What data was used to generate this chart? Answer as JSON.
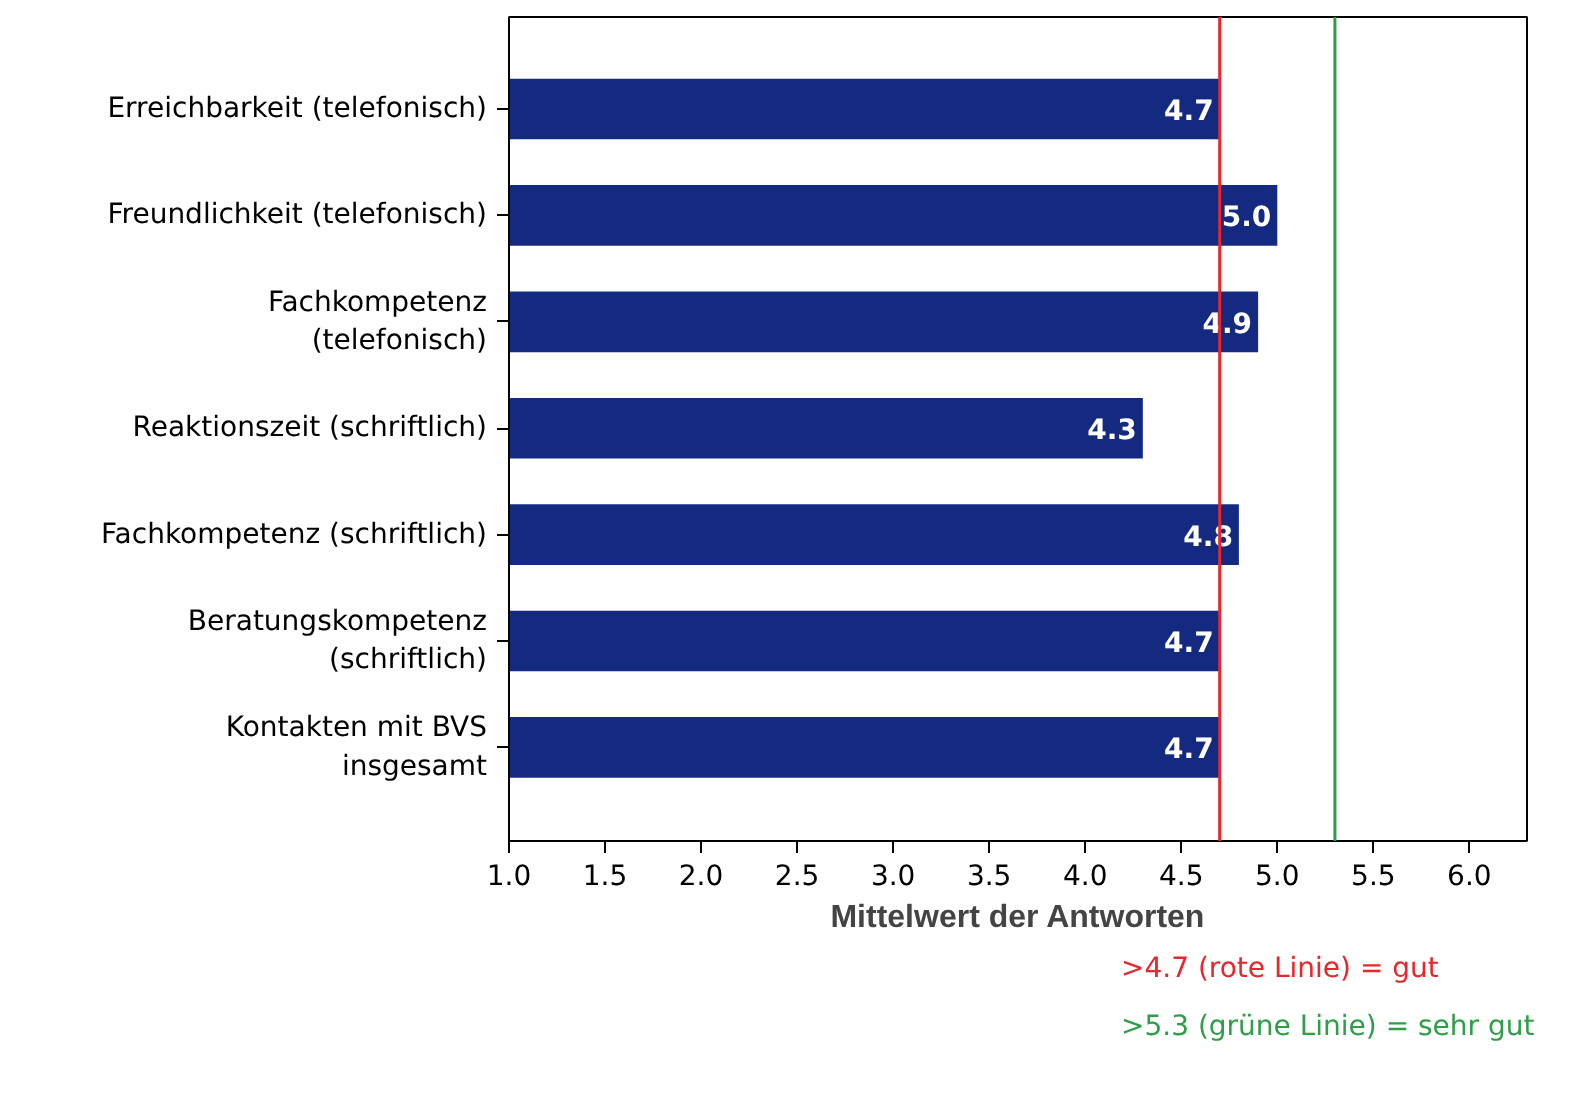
{
  "chart_data": {
    "type": "bar",
    "orientation": "horizontal",
    "xlabel": "Mittelwert der Antworten",
    "categories": [
      "Erreichbarkeit (telefonisch)",
      "Freundlichkeit (telefonisch)",
      "Fachkompetenz\n(telefonisch)",
      "Reaktionszeit (schriftlich)",
      "Fachkompetenz (schriftlich)",
      "Beratungskompetenz\n(schriftlich)",
      "Kontakten mit BVS\ninsgesamt"
    ],
    "values": [
      4.7,
      5.0,
      4.9,
      4.3,
      4.8,
      4.7,
      4.7
    ],
    "color": "#142a80",
    "value_labels": [
      "4.7",
      "5.0",
      "4.9",
      "4.3",
      "4.8",
      "4.7",
      "4.7"
    ],
    "xlim": [
      1.0,
      6.3
    ],
    "xticks": [
      "1.0",
      "1.5",
      "2.0",
      "2.5",
      "3.0",
      "3.5",
      "4.0",
      "4.5",
      "5.0",
      "5.5",
      "6.0"
    ],
    "ref_lines": [
      {
        "axis": "x",
        "value": 4.7,
        "label": ">4.7 (rote Linie) = gut",
        "color": "#e8262b"
      },
      {
        "axis": "x",
        "value": 5.3,
        "label": ">5.3 (grüne Linie) = sehr gut",
        "color": "#2e9e48"
      }
    ]
  }
}
